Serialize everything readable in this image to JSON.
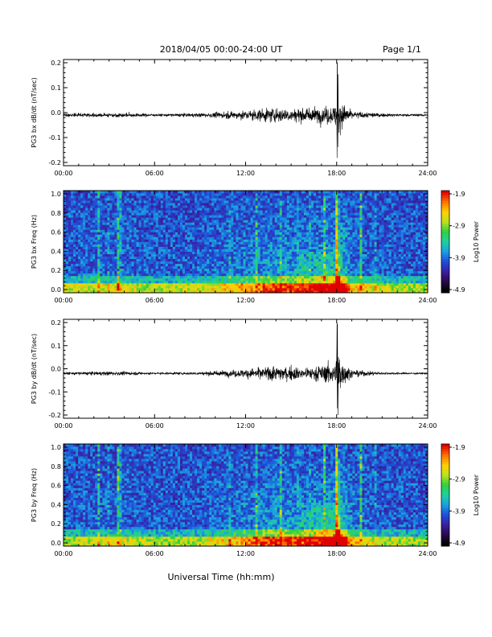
{
  "header": {
    "date_range": "2018/04/05  00:00-24:00 UT",
    "page": "Page 1/1"
  },
  "footer": {
    "xlabel": "Universal Time (hh:mm)"
  },
  "time_ticks": [
    "00:00",
    "06:00",
    "12:00",
    "18:00",
    "24:00"
  ],
  "colors": {
    "trace": "#000000",
    "colormap": [
      "#000000",
      "#2a0a4a",
      "#3b1fa0",
      "#1f4fd8",
      "#1aa0e0",
      "#20d0a0",
      "#30d040",
      "#c0e020",
      "#ffd000",
      "#ff7000",
      "#e00000"
    ]
  },
  "chart_data": [
    {
      "type": "line",
      "ylabel": "PG3 bx dB/dt (nT/sec)",
      "xlim": [
        0,
        24
      ],
      "ylim": [
        -0.2,
        0.2
      ],
      "yticks": [
        "0.2",
        "0.1",
        "0.0",
        "-0.1",
        "-0.2"
      ],
      "baseline": -0.01,
      "activity": [
        [
          0,
          0.01
        ],
        [
          3.8,
          0.015
        ],
        [
          6,
          0.007
        ],
        [
          9,
          0.012
        ],
        [
          11.5,
          0.025
        ],
        [
          14,
          0.045
        ],
        [
          16,
          0.04
        ],
        [
          17.9,
          0.06
        ],
        [
          18.1,
          0.17
        ],
        [
          18.3,
          0.08
        ],
        [
          19,
          0.025
        ],
        [
          21,
          0.01
        ],
        [
          24,
          0.006
        ]
      ]
    },
    {
      "type": "heatmap",
      "ylabel": "PG3 bx Freq (Hz)",
      "xlim": [
        0,
        24
      ],
      "ylim": [
        0.0,
        1.0
      ],
      "yticks": [
        "1.0",
        "0.8",
        "0.6",
        "0.4",
        "0.2",
        "0.0"
      ],
      "colorbar": {
        "label": "Log10 Power",
        "ticks": [
          "-1.9",
          "-2.9",
          "-3.9",
          "-4.9"
        ],
        "range": [
          -4.9,
          -1.9
        ]
      }
    },
    {
      "type": "line",
      "ylabel": "PG3 by dB/dt (nT/sec)",
      "xlim": [
        0,
        24
      ],
      "ylim": [
        -0.2,
        0.2
      ],
      "yticks": [
        "0.2",
        "0.1",
        "0.0",
        "-0.1",
        "-0.2"
      ],
      "baseline": -0.02,
      "activity": [
        [
          0,
          0.008
        ],
        [
          3.5,
          0.014
        ],
        [
          6,
          0.006
        ],
        [
          9,
          0.01
        ],
        [
          11.5,
          0.025
        ],
        [
          14,
          0.05
        ],
        [
          16,
          0.04
        ],
        [
          17.9,
          0.07
        ],
        [
          18.1,
          0.19
        ],
        [
          18.3,
          0.09
        ],
        [
          19,
          0.025
        ],
        [
          21,
          0.008
        ],
        [
          24,
          0.005
        ]
      ]
    },
    {
      "type": "heatmap",
      "ylabel": "PG3 by Freq (Hz)",
      "xlim": [
        0,
        24
      ],
      "ylim": [
        0.0,
        1.0
      ],
      "yticks": [
        "1.0",
        "0.8",
        "0.6",
        "0.4",
        "0.2",
        "0.0"
      ],
      "colorbar": {
        "label": "Log10 Power",
        "ticks": [
          "-1.9",
          "-2.9",
          "-3.9",
          "-4.9"
        ],
        "range": [
          -4.9,
          -1.9
        ]
      }
    }
  ]
}
